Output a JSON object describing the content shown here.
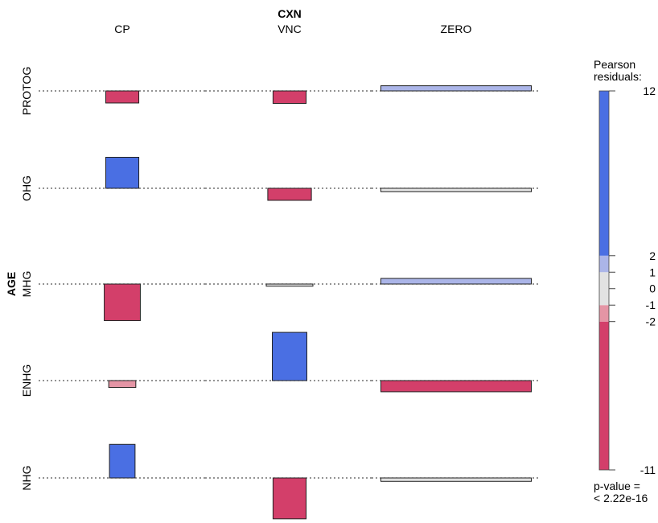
{
  "chart_data": {
    "type": "association",
    "title": "",
    "column_variable": "CXN",
    "row_variable": "AGE",
    "columns": [
      "CP",
      "VNC",
      "ZERO"
    ],
    "rows": [
      "PROTOG",
      "OHG",
      "MHG",
      "ENHG",
      "NHG"
    ],
    "cells": [
      {
        "row": "PROTOG",
        "col": "CP",
        "residual": -2.8,
        "relative_width": 0.22
      },
      {
        "row": "PROTOG",
        "col": "VNC",
        "residual": -2.9,
        "relative_width": 0.22
      },
      {
        "row": "PROTOG",
        "col": "ZERO",
        "residual": 1.2,
        "relative_width": 1.0
      },
      {
        "row": "OHG",
        "col": "CP",
        "residual": 7.2,
        "relative_width": 0.22
      },
      {
        "row": "OHG",
        "col": "VNC",
        "residual": -2.8,
        "relative_width": 0.29
      },
      {
        "row": "OHG",
        "col": "ZERO",
        "residual": -0.8,
        "relative_width": 1.0
      },
      {
        "row": "MHG",
        "col": "CP",
        "residual": -8.5,
        "relative_width": 0.24
      },
      {
        "row": "MHG",
        "col": "VNC",
        "residual": -0.5,
        "relative_width": 0.31
      },
      {
        "row": "MHG",
        "col": "ZERO",
        "residual": 1.3,
        "relative_width": 1.0
      },
      {
        "row": "ENHG",
        "col": "CP",
        "residual": -1.6,
        "relative_width": 0.18
      },
      {
        "row": "ENHG",
        "col": "VNC",
        "residual": 11.2,
        "relative_width": 0.23
      },
      {
        "row": "ENHG",
        "col": "ZERO",
        "residual": -2.6,
        "relative_width": 1.0
      },
      {
        "row": "NHG",
        "col": "CP",
        "residual": 7.8,
        "relative_width": 0.17
      },
      {
        "row": "NHG",
        "col": "VNC",
        "residual": -9.5,
        "relative_width": 0.22
      },
      {
        "row": "NHG",
        "col": "ZERO",
        "residual": -0.8,
        "relative_width": 1.0
      }
    ],
    "legend": {
      "title": "Pearson residuals:",
      "range": [
        -11,
        12
      ],
      "ticks": [
        12,
        2,
        1,
        0,
        -1,
        -2,
        -11
      ],
      "pvalue_text": "p-value =\n< 2.22e-16",
      "bands": [
        {
          "from": -11,
          "to": -2,
          "color": "#d33f6a"
        },
        {
          "from": -2,
          "to": -1,
          "color": "#e495a5"
        },
        {
          "from": -1,
          "to": 1,
          "color": "#e2e2e2"
        },
        {
          "from": 1,
          "to": 2,
          "color": "#abb5e8"
        },
        {
          "from": 2,
          "to": 12,
          "color": "#4a6fe3"
        }
      ]
    },
    "colors": {
      "strong_positive": "#4a6fe3",
      "weak_positive": "#abb5e8",
      "neutral": "#e2e2e2",
      "weak_negative": "#e495a5",
      "strong_negative": "#d33f6a"
    }
  }
}
